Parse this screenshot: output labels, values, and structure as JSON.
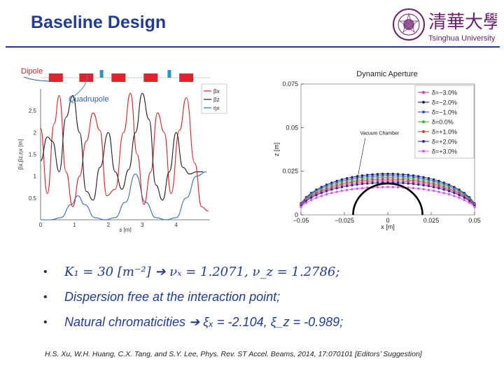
{
  "slide": {
    "title": "Baseline Design"
  },
  "logo": {
    "name_en": "Tsinghua University",
    "name_cn": "清華大學"
  },
  "bullets": [
    {
      "text": "K₁ = 30 [m⁻²] ➔ νₓ = 1.2071, ν_z = 1.2786;"
    },
    {
      "text": "Dispersion free at the interaction point;"
    },
    {
      "text": "Natural chromaticities ➔ ξₓ = -2.104, ξ_z = -0.989;"
    }
  ],
  "reference": "H.S. Xu, W.H. Huang, C.X. Tang, and S.Y. Lee, Phys. Rev. ST Accel. Beams, 2014, 17:070101 [Editors’ Suggestion]",
  "chart_data": [
    {
      "type": "line",
      "title": "",
      "xlabel": "s [m]",
      "ylabel": "βx,βz,ηx [m]",
      "xlim": [
        0,
        5
      ],
      "ylim": [
        0,
        3
      ],
      "xticks": [
        0,
        1,
        2,
        3,
        4
      ],
      "yticks": [
        0.5,
        1,
        1.5,
        2,
        2.5
      ],
      "annotations": [
        "Dipole",
        "Quadrupole"
      ],
      "legend": [
        "βx",
        "βz",
        "ηx"
      ],
      "legend_position": "top-right",
      "colors": {
        "betax": "#e0201b",
        "betaz": "#222222",
        "etax": "#2f6fb5",
        "dipole": "#d8262b",
        "quad": "#2a96c8"
      },
      "series": [
        {
          "name": "βx",
          "x": [
            0,
            0.2,
            0.4,
            0.55,
            0.75,
            0.95,
            1.15,
            1.35,
            1.55,
            1.75,
            1.95,
            2.2,
            2.45,
            2.65,
            2.85,
            3.05,
            3.25,
            3.45,
            3.65,
            3.85,
            4.1,
            4.3,
            4.55,
            4.75,
            4.95
          ],
          "values": [
            2.1,
            0.6,
            2.2,
            2.85,
            1.1,
            0.3,
            1.0,
            1.8,
            2.45,
            2.05,
            0.55,
            0.7,
            2.0,
            2.9,
            1.5,
            0.35,
            1.1,
            2.45,
            2.0,
            0.6,
            2.05,
            2.8,
            1.3,
            0.3,
            0.2
          ]
        },
        {
          "name": "βz",
          "x": [
            0,
            0.2,
            0.35,
            0.55,
            0.75,
            0.95,
            1.15,
            1.35,
            1.55,
            1.75,
            2.0,
            2.2,
            2.4,
            2.6,
            2.8,
            3.0,
            3.2,
            3.4,
            3.6,
            3.8,
            4.0,
            4.2,
            4.4,
            4.6,
            4.8
          ],
          "values": [
            1.35,
            1.9,
            1.8,
            1.1,
            2.35,
            2.85,
            2.0,
            0.65,
            0.45,
            1.2,
            2.0,
            1.1,
            0.7,
            1.15,
            2.0,
            2.9,
            2.3,
            0.8,
            0.45,
            1.1,
            2.0,
            1.2,
            1.05,
            1.1,
            1.1
          ]
        },
        {
          "name": "ηx",
          "x": [
            0,
            0.3,
            0.6,
            0.9,
            1.1,
            1.3,
            1.6,
            1.9,
            2.2,
            2.5,
            2.8,
            3.1,
            3.4,
            3.7,
            4.0,
            4.3,
            4.6,
            4.9
          ],
          "values": [
            0.0,
            0.0,
            0.05,
            0.35,
            0.55,
            0.35,
            0.05,
            0.0,
            0.05,
            0.4,
            1.05,
            0.4,
            0.05,
            0.0,
            0.05,
            0.5,
            1.0,
            1.1
          ]
        }
      ]
    },
    {
      "type": "scatter",
      "title": "Dynamic Aperture",
      "xlabel": "x [m]",
      "ylabel": "z [m]",
      "xlim": [
        -0.05,
        0.05
      ],
      "ylim": [
        0,
        0.075
      ],
      "xticks": [
        "-0.05",
        "-0.025",
        "0",
        "0.025",
        "0.05"
      ],
      "yticks": [
        "0",
        "0.025",
        "0.05",
        "0.075"
      ],
      "annotations": [
        "Vacuum Chamber"
      ],
      "legend_position": "top-right",
      "chamber": {
        "radius": 0.02,
        "color": "#000000"
      },
      "series": [
        {
          "name": "δ=−3.0%",
          "color": "#d63aa4",
          "peak": 0.0195
        },
        {
          "name": "δ=−2.0%",
          "color": "#1b1b8f",
          "peak": 0.0235
        },
        {
          "name": "δ=−1.0%",
          "color": "#2b4fd6",
          "peak": 0.0225
        },
        {
          "name": "δ=0.0%",
          "color": "#2fc02f",
          "peak": 0.0215
        },
        {
          "name": "δ=+1.0%",
          "color": "#e23a3a",
          "peak": 0.0205
        },
        {
          "name": "δ=+2.0%",
          "color": "#2a2ab0",
          "peak": 0.0185
        },
        {
          "name": "δ=+3.0%",
          "color": "#e05ad8",
          "peak": 0.016
        }
      ]
    }
  ]
}
